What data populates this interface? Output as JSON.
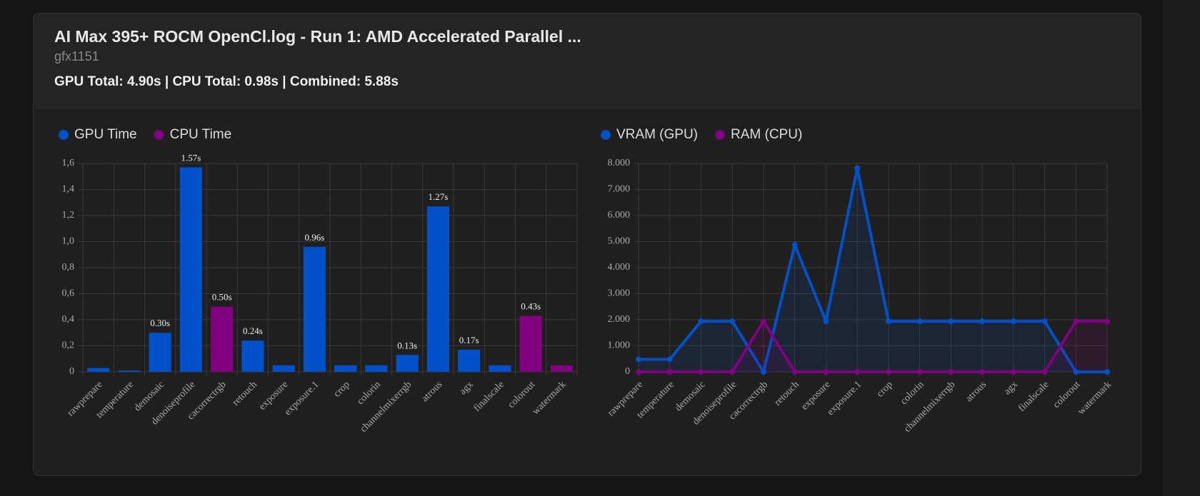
{
  "header": {
    "title": "AI Max 395+ ROCM OpenCl.log - Run 1: AMD Accelerated Parallel ...",
    "subtitle": "gfx1151",
    "summary": "GPU Total: 4.90s | CPU Total: 0.98s | Combined: 5.88s"
  },
  "chart_data": [
    {
      "type": "bar",
      "categories": [
        "rawprepare",
        "temperature",
        "demosaic",
        "denoiseprofile",
        "cacorrectrgb",
        "retouch",
        "exposure",
        "exposure.1",
        "crop",
        "colorin",
        "channelmixerrgb",
        "atrous",
        "agx",
        "finalscale",
        "colorout",
        "watermark"
      ],
      "series": [
        {
          "name": "GPU Time",
          "color": "#0050c8",
          "values": [
            0.03,
            0.01,
            0.3,
            1.57,
            null,
            0.24,
            0.05,
            0.96,
            0.05,
            0.05,
            0.13,
            1.27,
            0.17,
            0.05,
            null,
            null
          ],
          "value_labels": [
            null,
            null,
            "0.30s",
            "1.57s",
            null,
            "0.24s",
            null,
            "0.96s",
            null,
            null,
            "0.13s",
            "1.27s",
            "0.17s",
            null,
            null,
            null
          ]
        },
        {
          "name": "CPU Time",
          "color": "#800080",
          "values": [
            null,
            null,
            null,
            null,
            0.5,
            null,
            null,
            null,
            null,
            null,
            null,
            null,
            null,
            null,
            0.43,
            0.05
          ],
          "value_labels": [
            null,
            null,
            null,
            null,
            "0.50s",
            null,
            null,
            null,
            null,
            null,
            null,
            null,
            null,
            null,
            "0.43s",
            null
          ]
        }
      ],
      "ylim": [
        0,
        1.6
      ],
      "yticks": [
        0,
        {
          "value": 0.2,
          "label": "0,2"
        },
        {
          "value": 0.4,
          "label": "0,4"
        },
        {
          "value": 0.6,
          "label": "0,6"
        },
        {
          "value": 0.8,
          "label": "0,8"
        },
        {
          "value": 1.0,
          "label": "1,0"
        },
        {
          "value": 1.2,
          "label": "1,2"
        },
        {
          "value": 1.4,
          "label": "1,4"
        },
        {
          "value": 1.6,
          "label": "1,6"
        }
      ],
      "grid": true
    },
    {
      "type": "line",
      "categories": [
        "rawprepare",
        "temperature",
        "demosaic",
        "denoiseprofile",
        "cacorrectrgb",
        "retouch",
        "exposure",
        "exposure.1",
        "crop",
        "colorin",
        "channelmixerrgb",
        "atrous",
        "agx",
        "finalscale",
        "colorout",
        "watermark"
      ],
      "series": [
        {
          "name": "VRAM (GPU)",
          "color": "#0050c8",
          "values": [
            480,
            480,
            1940,
            1940,
            0,
            4870,
            1940,
            7820,
            1940,
            1940,
            1940,
            1940,
            1940,
            1940,
            0,
            0
          ]
        },
        {
          "name": "RAM (CPU)",
          "color": "#800080",
          "values": [
            0,
            0,
            0,
            0,
            1940,
            0,
            0,
            0,
            0,
            0,
            0,
            0,
            0,
            0,
            1940,
            1940
          ]
        }
      ],
      "ylim": [
        0,
        8000
      ],
      "yticks": [
        0,
        {
          "value": 1000,
          "label": "1.000"
        },
        {
          "value": 2000,
          "label": "2.000"
        },
        {
          "value": 3000,
          "label": "3.000"
        },
        {
          "value": 4000,
          "label": "4.000"
        },
        {
          "value": 5000,
          "label": "5.000"
        },
        {
          "value": 6000,
          "label": "6.000"
        },
        {
          "value": 7000,
          "label": "7.000"
        },
        {
          "value": 8000,
          "label": "8.000"
        }
      ],
      "grid": true
    }
  ]
}
